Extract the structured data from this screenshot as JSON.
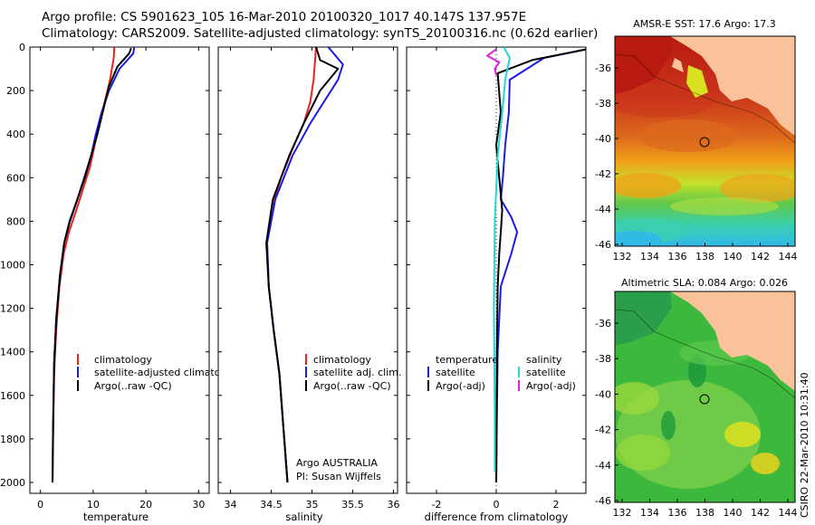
{
  "header": {
    "line1": "Argo profile: CS 5901623_105 16-Mar-2010 20100320_1017 40.147S 137.957E",
    "line2": "Climatology: CARS2009. Satellite-adjusted climatology: synTS_20100316.nc (0.62d earlier)"
  },
  "panels": {
    "temperature": {
      "xlabel": "temperature",
      "legend": [
        "climatology",
        "satellite-adjusted climatology",
        "Argo(..raw -QC)"
      ]
    },
    "salinity": {
      "xlabel": "salinity",
      "legend": [
        "climatology",
        "satellite adj. clim.",
        "Argo(..raw -QC)"
      ],
      "annotation": [
        "Argo AUSTRALIA",
        "PI: Susan Wijffels"
      ]
    },
    "difference": {
      "xlabel": "difference from climatology",
      "legend_left_header": "temperature",
      "legend_left": [
        "satellite",
        "Argo(-adj)"
      ],
      "legend_right_header": "salinity",
      "legend_right": [
        "satellite",
        "Argo(-adj)"
      ]
    },
    "sst_map": {
      "title": "AMSR-E SST: 17.6 Argo: 17.3"
    },
    "sla_map": {
      "title": "Altimetric SLA: 0.084 Argo: 0.026"
    },
    "credit": "CSIRO 22-Mar-2010 10:31:40"
  },
  "colors": {
    "climatology": "#e8231a",
    "satellite": "#1a1ae8",
    "argo": "#000000",
    "sal_satellite": "#22d8d8",
    "sal_argo": "#e020e0",
    "land": "#f9c29a"
  },
  "chart_data": [
    {
      "type": "line",
      "xlabel": "temperature",
      "ylabel": "",
      "xlim": [
        -2,
        32
      ],
      "ylim": [
        2050,
        0
      ],
      "y_inverted": true,
      "xticks": [
        0,
        10,
        20,
        30
      ],
      "yticks": [
        0,
        200,
        400,
        600,
        800,
        1000,
        1200,
        1400,
        1600,
        1800,
        2000
      ],
      "series": [
        {
          "name": "climatology",
          "color": "#e8231a",
          "x": [
            14.0,
            13.9,
            13.2,
            12.2,
            11.2,
            10.3,
            9.4,
            8.1,
            6.8,
            5.4,
            4.4,
            3.6,
            3.0,
            2.6,
            2.4,
            2.3
          ],
          "y": [
            0,
            50,
            150,
            250,
            350,
            450,
            550,
            650,
            750,
            850,
            950,
            1100,
            1300,
            1500,
            1800,
            2000
          ]
        },
        {
          "name": "satellite-adjusted climatology",
          "color": "#1a1ae8",
          "x": [
            17.8,
            17.6,
            15.0,
            13.0,
            11.6,
            10.5,
            9.6,
            8.3,
            7.0,
            5.5,
            4.5,
            3.7,
            3.0,
            2.6,
            2.4,
            2.3
          ],
          "y": [
            0,
            30,
            100,
            200,
            300,
            400,
            500,
            600,
            700,
            800,
            900,
            1050,
            1250,
            1450,
            1750,
            2000
          ]
        },
        {
          "name": "Argo(..raw -QC)",
          "color": "#000000",
          "x": [
            17.2,
            16.8,
            14.6,
            13.0,
            11.8,
            10.8,
            9.6,
            8.4,
            7.0,
            5.6,
            4.5,
            3.7,
            3.0,
            2.6,
            2.4,
            2.3
          ],
          "y": [
            5,
            30,
            90,
            180,
            300,
            400,
            500,
            600,
            700,
            800,
            900,
            1050,
            1250,
            1450,
            1750,
            2000
          ]
        }
      ]
    },
    {
      "type": "line",
      "xlabel": "salinity",
      "ylabel": "",
      "xlim": [
        33.85,
        36.05
      ],
      "ylim": [
        2050,
        0
      ],
      "y_inverted": true,
      "xticks": [
        34,
        34.5,
        35,
        35.5,
        36
      ],
      "series": [
        {
          "name": "climatology",
          "color": "#e8231a",
          "x": [
            35.05,
            35.02,
            34.98,
            34.9,
            34.78,
            34.62,
            34.5,
            34.45,
            34.47,
            34.53,
            34.6,
            34.66,
            34.7
          ],
          "y": [
            0,
            150,
            250,
            350,
            450,
            600,
            750,
            900,
            1100,
            1300,
            1500,
            1800,
            2000
          ]
        },
        {
          "name": "satellite adj. clim.",
          "color": "#1a1ae8",
          "x": [
            35.2,
            35.38,
            35.32,
            35.15,
            34.98,
            34.76,
            34.55,
            34.45,
            34.47,
            34.53,
            34.6,
            34.66,
            34.7
          ],
          "y": [
            0,
            80,
            150,
            250,
            350,
            500,
            700,
            900,
            1100,
            1300,
            1500,
            1800,
            2000
          ]
        },
        {
          "name": "Argo(..raw -QC)",
          "color": "#000000",
          "x": [
            35.05,
            35.1,
            35.32,
            35.1,
            34.9,
            34.72,
            34.52,
            34.44,
            34.47,
            34.53,
            34.6,
            34.66,
            34.7
          ],
          "y": [
            0,
            60,
            100,
            200,
            350,
            500,
            700,
            900,
            1100,
            1300,
            1500,
            1800,
            2000
          ]
        }
      ]
    },
    {
      "type": "line",
      "xlabel": "difference from climatology",
      "ylabel": "",
      "xlim": [
        -3,
        3
      ],
      "ylim": [
        2050,
        0
      ],
      "y_inverted": true,
      "xticks": [
        -2,
        0,
        2
      ],
      "series": [
        {
          "name": "temperature satellite",
          "color": "#1a1ae8",
          "x": [
            3.4,
            1.6,
            0.45,
            0.42,
            0.3,
            0.22,
            0.15,
            0.5,
            0.7,
            0.5,
            0.15,
            0.05,
            0.02,
            0.0
          ],
          "y": [
            0,
            50,
            150,
            300,
            450,
            600,
            700,
            780,
            850,
            950,
            1100,
            1400,
            1700,
            2000
          ]
        },
        {
          "name": "temperature Argo(-adj)",
          "color": "#000000",
          "x": [
            3.2,
            1.2,
            0.05,
            0.15,
            0.0,
            0.1,
            0.2,
            0.15,
            0.1,
            0.05,
            0.02,
            0.0
          ],
          "y": [
            5,
            60,
            120,
            300,
            450,
            600,
            750,
            850,
            950,
            1100,
            1400,
            2000
          ]
        },
        {
          "name": "salinity satellite",
          "color": "#22d8d8",
          "x": [
            0.25,
            0.45,
            0.3,
            0.2,
            0.05,
            -0.05,
            -0.08,
            -0.05,
            -0.05
          ],
          "y": [
            0,
            50,
            150,
            300,
            500,
            800,
            1200,
            1700,
            1950
          ]
        },
        {
          "name": "salinity Argo(-adj)",
          "color": "#e020e0",
          "x": [
            0.0,
            -0.3,
            0.1,
            -0.05,
            0.0
          ],
          "y": [
            10,
            40,
            70,
            100,
            130
          ]
        }
      ]
    }
  ],
  "maps": {
    "lon_ticks": [
      "132",
      "134",
      "136",
      "138",
      "140",
      "142",
      "144"
    ],
    "lat_ticks": [
      "-36",
      "-38",
      "-40",
      "-42",
      "-44",
      "-46"
    ],
    "argo_position": {
      "lon": 137.957,
      "lat": -40.147
    }
  }
}
